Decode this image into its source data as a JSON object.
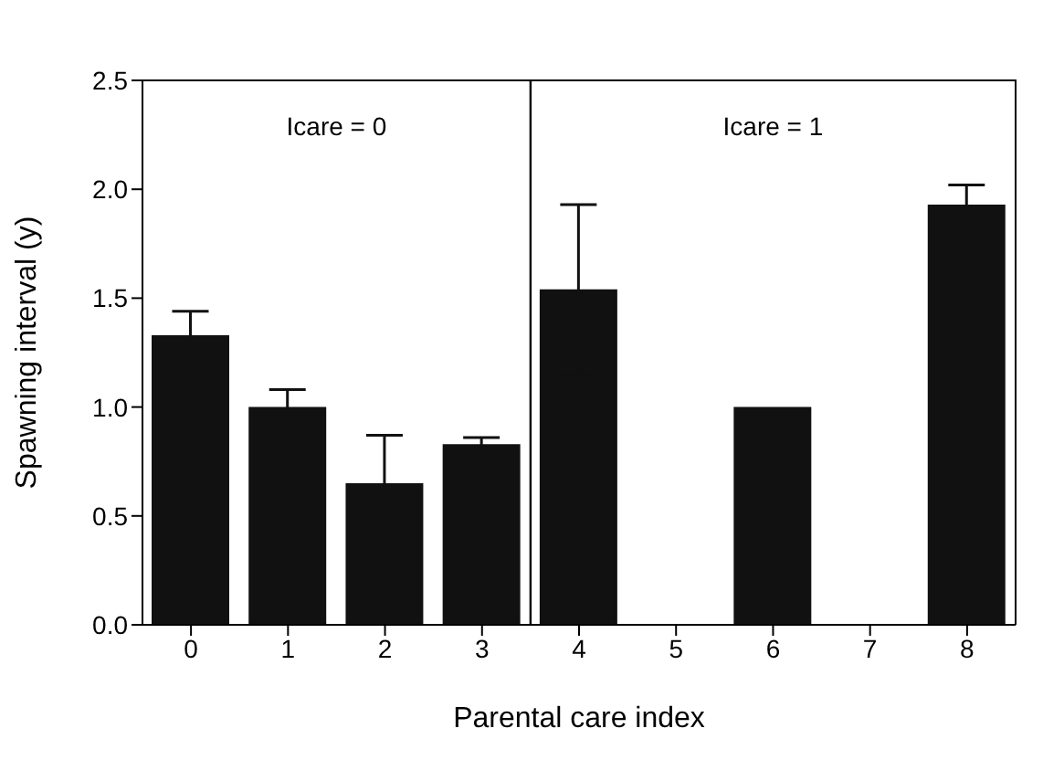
{
  "chart_data": {
    "type": "bar",
    "xlabel": "Parental care index",
    "ylabel": "Spawning interval (y)",
    "x": [
      0,
      1,
      2,
      3,
      4,
      5,
      6,
      7,
      8
    ],
    "values": [
      1.33,
      1.0,
      0.65,
      0.83,
      1.54,
      0,
      1.0,
      0,
      1.93
    ],
    "errors": [
      0.11,
      0.08,
      0.22,
      0.03,
      0.39,
      null,
      null,
      null,
      0.09
    ],
    "color": "#111111",
    "xlim": [
      -0.5,
      8.5
    ],
    "xticks": [
      0,
      1,
      2,
      3,
      4,
      5,
      6,
      7,
      8
    ],
    "ylim": [
      0,
      2.5
    ],
    "yticks": [
      {
        "value": 0,
        "label": "0.0"
      },
      {
        "value": 0.5,
        "label": "0.5"
      },
      {
        "value": 1,
        "label": "1.0"
      },
      {
        "value": 1.5,
        "label": "1.5"
      },
      {
        "value": 2,
        "label": "2.0"
      },
      {
        "value": 2.5,
        "label": "2.5"
      }
    ],
    "ref_lines": [
      {
        "axis": "x",
        "value": 3.5,
        "color": "#000000"
      }
    ],
    "annotations": [
      "Icare = 0",
      "Icare = 1"
    ]
  }
}
